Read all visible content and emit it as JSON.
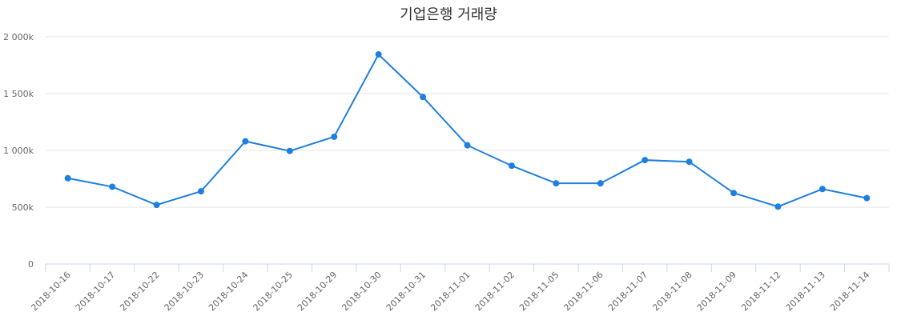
{
  "chart_data": {
    "type": "line",
    "title": "기업은행 거래량",
    "xlabel": "",
    "ylabel": "",
    "ylim": [
      0,
      2000000
    ],
    "y_ticks": [
      {
        "value": 0,
        "label": "0"
      },
      {
        "value": 500000,
        "label": "500k"
      },
      {
        "value": 1000000,
        "label": "1 000k"
      },
      {
        "value": 1500000,
        "label": "1 500k"
      },
      {
        "value": 2000000,
        "label": "2 000k"
      }
    ],
    "grid": true,
    "legend": "none",
    "categories": [
      "2018-10-16",
      "2018-10-17",
      "2018-10-22",
      "2018-10-23",
      "2018-10-24",
      "2018-10-25",
      "2018-10-29",
      "2018-10-30",
      "2018-10-31",
      "2018-11-01",
      "2018-11-02",
      "2018-11-05",
      "2018-11-06",
      "2018-11-07",
      "2018-11-08",
      "2018-11-09",
      "2018-11-12",
      "2018-11-13",
      "2018-11-14"
    ],
    "series": [
      {
        "color": "#1f7fe0",
        "values": [
          755000,
          680000,
          520000,
          640000,
          1080000,
          995000,
          1120000,
          1845000,
          1470000,
          1045000,
          865000,
          710000,
          710000,
          915000,
          900000,
          625000,
          505000,
          660000,
          580000
        ]
      }
    ]
  }
}
